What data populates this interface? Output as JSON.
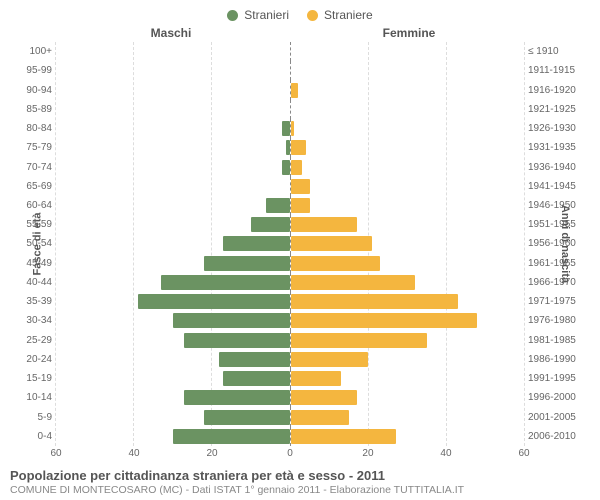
{
  "legend": {
    "male": {
      "label": "Stranieri",
      "color": "#6b9362"
    },
    "female": {
      "label": "Straniere",
      "color": "#f4b63f"
    }
  },
  "headers": {
    "left": "Maschi",
    "right": "Femmine"
  },
  "axis_labels": {
    "left": "Fasce di età",
    "right": "Anni di nascita"
  },
  "chart": {
    "type": "population-pyramid",
    "xmax": 60,
    "xticks": [
      0,
      20,
      40,
      60
    ],
    "background_color": "#ffffff",
    "grid_color": "#dddddd",
    "center_line_color": "#888888",
    "bar_color_male": "#6b9362",
    "bar_color_female": "#f4b63f",
    "label_fontsize": 10,
    "rows": [
      {
        "age": "100+",
        "birth": "≤ 1910",
        "m": 0,
        "f": 0
      },
      {
        "age": "95-99",
        "birth": "1911-1915",
        "m": 0,
        "f": 0
      },
      {
        "age": "90-94",
        "birth": "1916-1920",
        "m": 0,
        "f": 2
      },
      {
        "age": "85-89",
        "birth": "1921-1925",
        "m": 0,
        "f": 0
      },
      {
        "age": "80-84",
        "birth": "1926-1930",
        "m": 2,
        "f": 1
      },
      {
        "age": "75-79",
        "birth": "1931-1935",
        "m": 1,
        "f": 4
      },
      {
        "age": "70-74",
        "birth": "1936-1940",
        "m": 2,
        "f": 3
      },
      {
        "age": "65-69",
        "birth": "1941-1945",
        "m": 0,
        "f": 5
      },
      {
        "age": "60-64",
        "birth": "1946-1950",
        "m": 6,
        "f": 5
      },
      {
        "age": "55-59",
        "birth": "1951-1955",
        "m": 10,
        "f": 17
      },
      {
        "age": "50-54",
        "birth": "1956-1960",
        "m": 17,
        "f": 21
      },
      {
        "age": "45-49",
        "birth": "1961-1965",
        "m": 22,
        "f": 23
      },
      {
        "age": "40-44",
        "birth": "1966-1970",
        "m": 33,
        "f": 32
      },
      {
        "age": "35-39",
        "birth": "1971-1975",
        "m": 39,
        "f": 43
      },
      {
        "age": "30-34",
        "birth": "1976-1980",
        "m": 30,
        "f": 48
      },
      {
        "age": "25-29",
        "birth": "1981-1985",
        "m": 27,
        "f": 35
      },
      {
        "age": "20-24",
        "birth": "1986-1990",
        "m": 18,
        "f": 20
      },
      {
        "age": "15-19",
        "birth": "1991-1995",
        "m": 17,
        "f": 13
      },
      {
        "age": "10-14",
        "birth": "1996-2000",
        "m": 27,
        "f": 17
      },
      {
        "age": "5-9",
        "birth": "2001-2005",
        "m": 22,
        "f": 15
      },
      {
        "age": "0-4",
        "birth": "2006-2010",
        "m": 30,
        "f": 27
      }
    ]
  },
  "footer": {
    "title": "Popolazione per cittadinanza straniera per età e sesso - 2011",
    "subtitle": "COMUNE DI MONTECOSARO (MC) - Dati ISTAT 1° gennaio 2011 - Elaborazione TUTTITALIA.IT"
  }
}
